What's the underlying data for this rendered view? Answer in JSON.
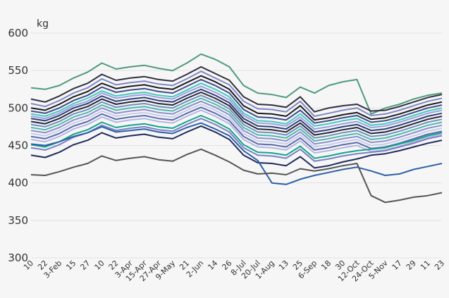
{
  "chart_data": {
    "type": "line",
    "ylabel": "kg",
    "ylim": [
      300,
      600
    ],
    "yticks": [
      "300",
      "350",
      "400",
      "450",
      "500",
      "550",
      "600"
    ],
    "grid": true,
    "legend": "none",
    "categories": [
      "10",
      "22",
      "3-Feb",
      "15",
      "27",
      "10",
      "22",
      "3-Apr",
      "15-Apr",
      "27-Apr",
      "9-May",
      "21",
      "2-Jun",
      "14",
      "26",
      "8-Jul",
      "20-Jul",
      "1-Aug",
      "13",
      "25",
      "6-Sep",
      "18",
      "30",
      "12-Oct",
      "24-Oct",
      "5-Nov",
      "17",
      "29",
      "11",
      "23"
    ],
    "series": [
      {
        "color": "#4e9a7e",
        "values": [
          527,
          525,
          530,
          540,
          548,
          560,
          552,
          555,
          557,
          553,
          550,
          560,
          572,
          565,
          555,
          530,
          520,
          518,
          514,
          528,
          520,
          530,
          535,
          538,
          492,
          500,
          505,
          512,
          517,
          520
        ]
      },
      {
        "color": "#2f2f3f",
        "values": [
          512,
          508,
          516,
          526,
          533,
          545,
          537,
          540,
          542,
          538,
          536,
          545,
          555,
          546,
          537,
          515,
          505,
          504,
          501,
          515,
          495,
          500,
          503,
          505,
          496,
          497,
          502,
          508,
          514,
          518
        ]
      },
      {
        "color": "#7f86c9",
        "values": [
          506,
          502,
          510,
          520,
          527,
          539,
          531,
          534,
          536,
          532,
          530,
          539,
          549,
          540,
          531,
          509,
          499,
          498,
          495,
          509,
          489,
          493,
          497,
          500,
          490,
          492,
          497,
          503,
          509,
          513
        ]
      },
      {
        "color": "#1a1a1a",
        "values": [
          500,
          497,
          505,
          515,
          522,
          533,
          526,
          529,
          531,
          527,
          525,
          534,
          543,
          535,
          525,
          503,
          493,
          492,
          489,
          503,
          484,
          487,
          491,
          494,
          485,
          487,
          492,
          498,
          504,
          508
        ]
      },
      {
        "color": "#3e4d8c",
        "values": [
          496,
          493,
          500,
          510,
          517,
          528,
          521,
          524,
          526,
          522,
          520,
          529,
          538,
          530,
          520,
          498,
          488,
          487,
          484,
          497,
          480,
          483,
          487,
          490,
          481,
          483,
          488,
          494,
          500,
          504
        ]
      },
      {
        "color": "#45c7c0",
        "values": [
          492,
          489,
          496,
          506,
          513,
          523,
          516,
          519,
          521,
          517,
          515,
          524,
          533,
          525,
          515,
          493,
          483,
          482,
          479,
          492,
          476,
          479,
          483,
          486,
          477,
          479,
          484,
          490,
          496,
          500
        ]
      },
      {
        "color": "#9aa0dc",
        "values": [
          489,
          486,
          493,
          503,
          509,
          520,
          513,
          516,
          518,
          514,
          512,
          521,
          529,
          521,
          511,
          490,
          480,
          479,
          476,
          488,
          472,
          475,
          479,
          482,
          474,
          476,
          481,
          487,
          493,
          497
        ]
      },
      {
        "color": "#2e3e7a",
        "values": [
          486,
          483,
          490,
          500,
          506,
          516,
          509,
          512,
          514,
          510,
          508,
          517,
          525,
          517,
          507,
          486,
          476,
          475,
          472,
          484,
          468,
          471,
          475,
          478,
          470,
          472,
          477,
          483,
          489,
          493
        ]
      },
      {
        "color": "#262636",
        "values": [
          482,
          479,
          486,
          496,
          502,
          512,
          505,
          508,
          510,
          506,
          504,
          513,
          521,
          513,
          503,
          482,
          472,
          471,
          468,
          480,
          464,
          467,
          471,
          474,
          466,
          468,
          473,
          479,
          485,
          489
        ]
      },
      {
        "color": "#6f8fc0",
        "values": [
          478,
          475,
          482,
          492,
          498,
          508,
          501,
          504,
          506,
          502,
          500,
          509,
          517,
          509,
          499,
          478,
          468,
          467,
          464,
          476,
          460,
          463,
          467,
          470,
          462,
          464,
          469,
          475,
          481,
          485
        ]
      },
      {
        "color": "#4fb7a8",
        "values": [
          474,
          471,
          478,
          488,
          494,
          504,
          497,
          500,
          502,
          498,
          496,
          505,
          513,
          505,
          495,
          474,
          464,
          463,
          460,
          472,
          456,
          459,
          463,
          466,
          458,
          460,
          465,
          471,
          477,
          481
        ]
      },
      {
        "color": "#8a8fcf",
        "values": [
          470,
          467,
          474,
          484,
          490,
          500,
          493,
          496,
          498,
          494,
          492,
          501,
          509,
          501,
          491,
          470,
          460,
          459,
          456,
          468,
          452,
          455,
          459,
          462,
          454,
          456,
          461,
          467,
          473,
          477
        ]
      },
      {
        "color": "#c7cbe8",
        "values": [
          466,
          463,
          470,
          480,
          486,
          496,
          489,
          492,
          494,
          490,
          488,
          497,
          505,
          497,
          487,
          466,
          456,
          455,
          452,
          464,
          448,
          451,
          455,
          458,
          450,
          452,
          457,
          463,
          469,
          473
        ]
      },
      {
        "color": "#5a6bb0",
        "values": [
          462,
          459,
          466,
          476,
          482,
          492,
          485,
          488,
          490,
          486,
          484,
          493,
          501,
          493,
          483,
          462,
          452,
          451,
          448,
          460,
          444,
          447,
          451,
          454,
          446,
          448,
          453,
          459,
          465,
          469
        ]
      },
      {
        "color": "#b3b6e0",
        "values": [
          458,
          455,
          462,
          472,
          478,
          488,
          481,
          484,
          486,
          482,
          480,
          489,
          497,
          489,
          479,
          458,
          448,
          447,
          444,
          456,
          440,
          443,
          447,
          450,
          442,
          444,
          449,
          455,
          461,
          465
        ]
      },
      {
        "color": "#13a38a",
        "values": [
          451,
          448,
          455,
          465,
          471,
          481,
          474,
          477,
          479,
          475,
          473,
          482,
          490,
          482,
          472,
          451,
          441,
          440,
          437,
          449,
          433,
          436,
          440,
          443,
          445,
          447,
          452,
          457,
          463,
          467
        ]
      },
      {
        "color": "#7a7fc4",
        "values": [
          447,
          444,
          451,
          461,
          467,
          477,
          470,
          473,
          475,
          471,
          469,
          478,
          486,
          478,
          468,
          447,
          437,
          436,
          433,
          445,
          429,
          432,
          436,
          439,
          441,
          443,
          448,
          453,
          459,
          463
        ]
      },
      {
        "color": "#1f2a5c",
        "values": [
          437,
          434,
          441,
          451,
          457,
          467,
          460,
          463,
          465,
          461,
          459,
          468,
          476,
          468,
          458,
          437,
          427,
          426,
          423,
          435,
          420,
          423,
          428,
          432,
          437,
          439,
          443,
          448,
          453,
          457
        ]
      },
      {
        "color": "#2d5fa8",
        "values": [
          452,
          450,
          455,
          462,
          467,
          475,
          468,
          470,
          472,
          468,
          466,
          474,
          480,
          472,
          463,
          443,
          430,
          400,
          398,
          405,
          410,
          414,
          418,
          421,
          416,
          410,
          412,
          418,
          422,
          426
        ]
      },
      {
        "color": "#555555",
        "values": [
          411,
          410,
          415,
          421,
          426,
          436,
          430,
          433,
          435,
          431,
          429,
          438,
          445,
          437,
          428,
          417,
          412,
          413,
          411,
          419,
          416,
          419,
          423,
          426,
          383,
          374,
          377,
          381,
          383,
          387
        ]
      }
    ]
  }
}
